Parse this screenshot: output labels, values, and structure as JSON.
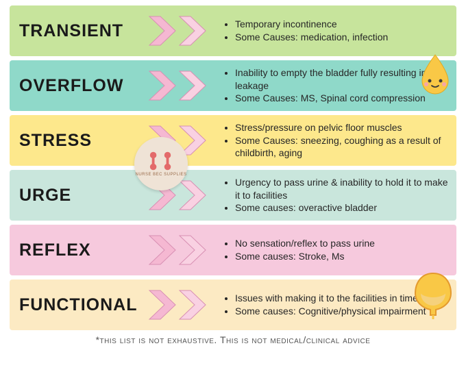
{
  "chevron": {
    "fill": "#f5b8d2",
    "stroke": "#d88fb3",
    "inner": "#f9d1e2"
  },
  "rows": [
    {
      "title": "TRANSIENT",
      "bg": "#c7e49c",
      "bullets": [
        "Temporary incontinence",
        "Some Causes: medication, infection"
      ]
    },
    {
      "title": "OVERFLOW",
      "bg": "#8fd9c9",
      "bullets": [
        "Inability to empty the bladder fully resulting in leakage",
        "Some Causes: MS, Spinal cord compression"
      ]
    },
    {
      "title": "STRESS",
      "bg": "#fde88c",
      "bullets": [
        "Stress/pressure on pelvic floor muscles",
        "Some Causes: sneezing, coughing as a result of childbirth, aging"
      ]
    },
    {
      "title": "URGE",
      "bg": "#c9e6dc",
      "bullets": [
        "Urgency to pass urine & inability to hold it to make it to facilities",
        "Some causes: overactive bladder"
      ]
    },
    {
      "title": "REFLEX",
      "bg": "#f6c9dd",
      "bullets": [
        "No sensation/reflex to pass urine",
        "Some causes: Stroke, Ms"
      ]
    },
    {
      "title": "FUNCTIONAL",
      "bg": "#fceac3",
      "bullets": [
        "Issues with making it to the facilities in time",
        "Some causes: Cognitive/physical impairment"
      ]
    }
  ],
  "footer": "*this list is not exhaustive. This is not medical/clinical advice",
  "stamp_text": "NURSE BEC SUPPLIES",
  "illustrations": {
    "drop_fill": "#f9c846",
    "drop_shadow": "#e0a820",
    "bladder_fill": "#f9c846",
    "bladder_stroke": "#e49a2e",
    "bladder_liquid": "#f4d183",
    "stamp_bg": "#efe3d6",
    "dumbbell_color": "#e36a6a"
  }
}
